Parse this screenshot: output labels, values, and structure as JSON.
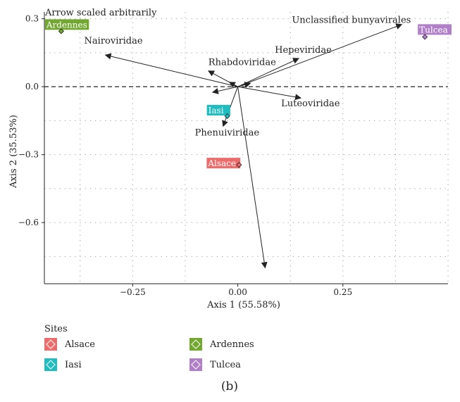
{
  "chart_data": {
    "type": "biplot",
    "annotation": "Arrow scaled arbitrarily",
    "xlabel": "Axis 1 (55.58%)",
    "ylabel": "Axis 2 (35.53%)",
    "xlim": [
      -0.46,
      0.5
    ],
    "ylim": [
      -0.87,
      0.33
    ],
    "x_ticks": [
      -0.25,
      0.0,
      0.25
    ],
    "y_ticks": [
      0.3,
      0.0,
      -0.3,
      -0.6
    ],
    "x_tick_labels": [
      "−0.25",
      "0.00",
      "0.25"
    ],
    "y_tick_labels": [
      "0.3",
      "0.0",
      "−0.3",
      "−0.6"
    ],
    "grid": true,
    "origin_line": true,
    "legend_title": "Sites",
    "legend_position": "bottom",
    "sites": [
      {
        "name": "Alsace",
        "x": 0.003,
        "y": -0.345,
        "color": "#ee6b6b"
      },
      {
        "name": "Ardennes",
        "x": -0.42,
        "y": 0.245,
        "color": "#72a82f"
      },
      {
        "name": "Iasi",
        "x": -0.025,
        "y": -0.13,
        "color": "#1fbcc0"
      },
      {
        "name": "Tulcea",
        "x": 0.445,
        "y": 0.22,
        "color": "#b07fc8"
      }
    ],
    "arrows": [
      {
        "label": "Nairoviridae",
        "x": -0.315,
        "y": 0.14
      },
      {
        "label": "Rhabdoviridae",
        "x": -0.07,
        "y": 0.07
      },
      {
        "label": "Hepeviridae",
        "x": 0.145,
        "y": 0.125
      },
      {
        "label": "Unclassified bunyavirales",
        "x": 0.39,
        "y": 0.275
      },
      {
        "label": "Luteoviridae",
        "x": 0.15,
        "y": -0.05
      },
      {
        "label": "Phenuiviridae",
        "x": -0.035,
        "y": -0.175
      },
      {
        "label": "",
        "x": -0.06,
        "y": -0.025
      },
      {
        "label": "",
        "x": 0.065,
        "y": -0.8
      },
      {
        "label": "",
        "x": -0.02,
        "y": 0.02
      },
      {
        "label": "",
        "x": 0.03,
        "y": 0.015
      }
    ]
  },
  "caption": "(b)"
}
